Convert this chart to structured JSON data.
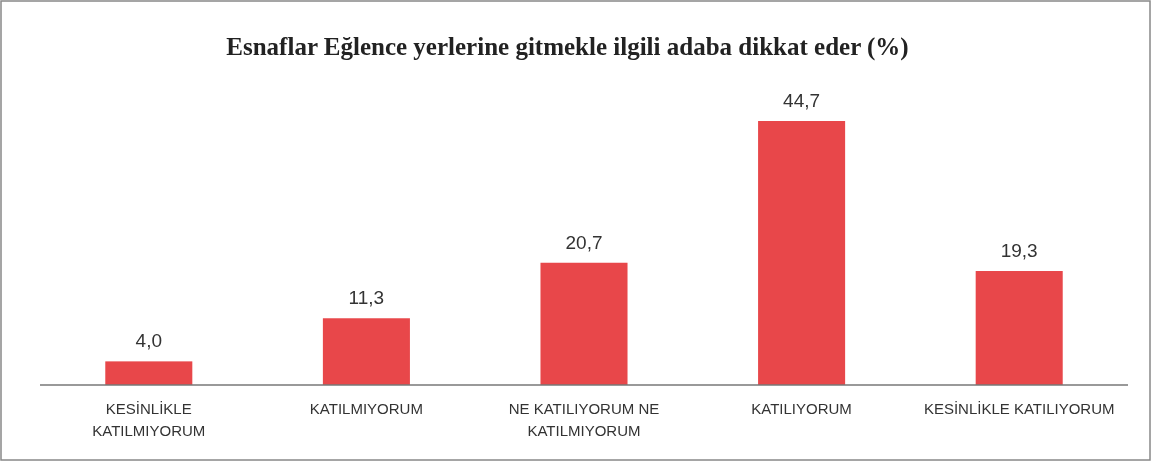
{
  "chart_data": {
    "type": "bar",
    "title": "Esnaflar Eğlence yerlerine gitmekle ilgili adaba dikkat eder (%)",
    "categories": [
      "KESİNLİKLE KATILMIYORUM",
      "KATILMIYORUM",
      "NE KATILIYORUM NE KATILMIYORUM",
      "KATILIYORUM",
      "KESİNLİKLE KATILIYORUM"
    ],
    "values": [
      4.0,
      11.3,
      20.7,
      44.7,
      19.3
    ],
    "value_labels": [
      "4,0",
      "11,3",
      "20,7",
      "44,7",
      "19,3"
    ],
    "color": "#e8474a"
  }
}
